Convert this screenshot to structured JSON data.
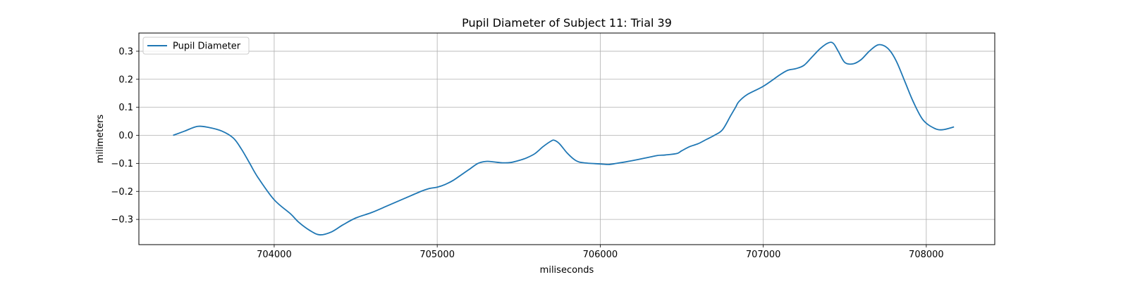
{
  "chart_data": {
    "type": "line",
    "title": "Pupil Diameter of Subject 11: Trial 39",
    "xlabel": "miliseconds",
    "ylabel": "milimeters",
    "xlim": [
      703170,
      708420
    ],
    "ylim": [
      -0.39,
      0.365
    ],
    "xticks": [
      704000,
      705000,
      706000,
      707000,
      708000
    ],
    "xtick_labels": [
      "704000",
      "705000",
      "706000",
      "707000",
      "708000"
    ],
    "yticks": [
      -0.3,
      -0.2,
      -0.1,
      0.0,
      0.1,
      0.2,
      0.3
    ],
    "ytick_labels": [
      "−0.3",
      "−0.2",
      "−0.1",
      "0.0",
      "0.1",
      "0.2",
      "0.3"
    ],
    "grid": true,
    "legend_position": "upper-left",
    "series": [
      {
        "name": "Pupil Diameter",
        "color": "#1f77b4",
        "x": [
          703380,
          703450,
          703530,
          703600,
          703680,
          703750,
          703800,
          703850,
          703900,
          704000,
          704100,
          704150,
          704220,
          704280,
          704350,
          704420,
          704500,
          704600,
          704700,
          704800,
          704900,
          704950,
          705000,
          705050,
          705100,
          705150,
          705200,
          705250,
          705300,
          705350,
          705400,
          705450,
          705500,
          705550,
          705600,
          705650,
          705700,
          705720,
          705750,
          705800,
          705850,
          705900,
          706000,
          706050,
          706100,
          706200,
          706300,
          706350,
          706400,
          706470,
          706500,
          706550,
          706600,
          706650,
          706700,
          706750,
          706800,
          706830,
          706850,
          706900,
          707000,
          707100,
          707150,
          707200,
          707250,
          707300,
          707350,
          707400,
          707430,
          707460,
          707500,
          707550,
          707600,
          707650,
          707700,
          707740,
          707780,
          707820,
          707870,
          707920,
          707980,
          708050,
          708100,
          708170
        ],
        "y": [
          0.0,
          0.015,
          0.032,
          0.028,
          0.015,
          -0.01,
          -0.05,
          -0.1,
          -0.15,
          -0.23,
          -0.28,
          -0.31,
          -0.34,
          -0.355,
          -0.345,
          -0.32,
          -0.295,
          -0.275,
          -0.25,
          -0.225,
          -0.2,
          -0.19,
          -0.185,
          -0.175,
          -0.16,
          -0.14,
          -0.12,
          -0.1,
          -0.093,
          -0.095,
          -0.098,
          -0.097,
          -0.09,
          -0.08,
          -0.065,
          -0.04,
          -0.02,
          -0.018,
          -0.03,
          -0.065,
          -0.09,
          -0.098,
          -0.102,
          -0.104,
          -0.1,
          -0.09,
          -0.078,
          -0.072,
          -0.07,
          -0.065,
          -0.055,
          -0.04,
          -0.03,
          -0.015,
          0.0,
          0.02,
          0.07,
          0.1,
          0.12,
          0.145,
          0.175,
          0.215,
          0.232,
          0.238,
          0.25,
          0.28,
          0.31,
          0.33,
          0.328,
          0.3,
          0.26,
          0.255,
          0.27,
          0.3,
          0.322,
          0.32,
          0.3,
          0.26,
          0.19,
          0.12,
          0.055,
          0.025,
          0.02,
          0.03
        ]
      }
    ]
  }
}
